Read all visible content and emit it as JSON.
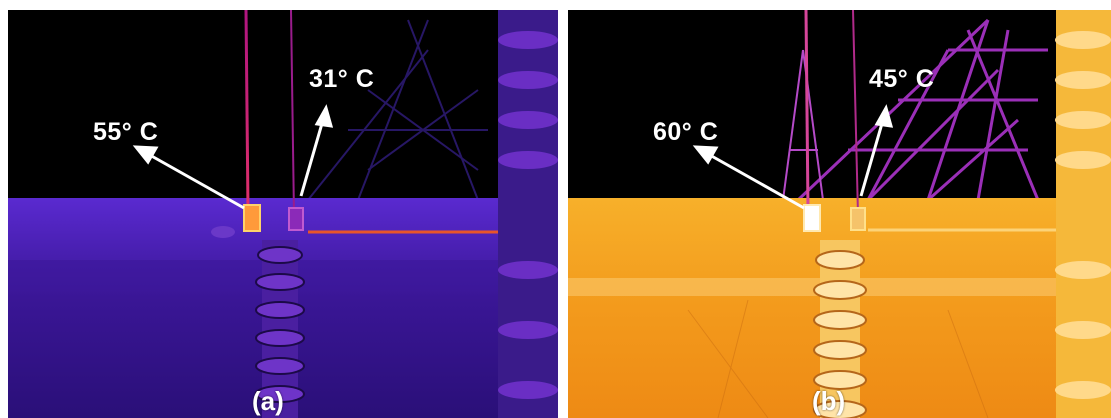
{
  "panels": [
    {
      "id": "a",
      "label": "(a)",
      "palette": "iron-dark",
      "readings": [
        {
          "text": "55° C"
        },
        {
          "text": "31° C"
        }
      ]
    },
    {
      "id": "b",
      "label": "(b)",
      "palette": "iron-bright",
      "readings": [
        {
          "text": "60° C"
        },
        {
          "text": "45° C"
        }
      ]
    }
  ],
  "colors": {
    "sky": "#000000",
    "panel_a_ground": "#4a1fb0",
    "panel_b_ground": "#f3a21c",
    "hot_spot": "#ffd36a",
    "annotation": "#ffffff"
  }
}
